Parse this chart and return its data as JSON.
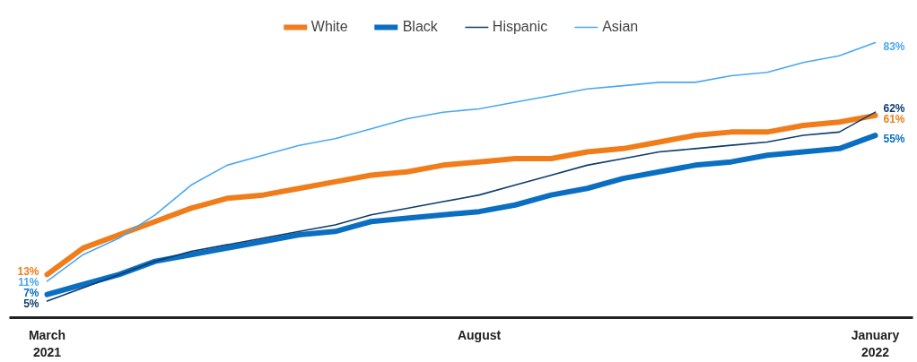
{
  "chart_data": {
    "type": "line",
    "categories": [
      "March\n2021",
      null,
      null,
      null,
      null,
      null,
      null,
      null,
      null,
      null,
      null,
      null,
      "August",
      null,
      null,
      null,
      null,
      null,
      null,
      null,
      null,
      null,
      null,
      "January\n2022"
    ],
    "series": [
      {
        "name": "White",
        "color": "#f07d1a",
        "values": [
          13,
          21,
          25,
          29,
          33,
          36,
          37,
          39,
          41,
          43,
          44,
          46,
          47,
          48,
          48,
          50,
          51,
          53,
          55,
          56,
          56,
          58,
          59,
          61
        ],
        "value_labels": [
          "13%",
          null,
          null,
          null,
          null,
          null,
          null,
          null,
          null,
          null,
          null,
          null,
          null,
          null,
          null,
          null,
          null,
          null,
          null,
          null,
          null,
          null,
          null,
          "61%"
        ]
      },
      {
        "name": "Black",
        "color": "#0a6fc2",
        "values": [
          7,
          10,
          13,
          17,
          19,
          21,
          23,
          25,
          26,
          29,
          30,
          31,
          32,
          34,
          37,
          39,
          42,
          44,
          46,
          47,
          49,
          50,
          51,
          55
        ],
        "value_labels": [
          "7%",
          null,
          null,
          null,
          null,
          null,
          null,
          null,
          null,
          null,
          null,
          null,
          null,
          null,
          null,
          null,
          null,
          null,
          null,
          null,
          null,
          null,
          null,
          "55%"
        ]
      },
      {
        "name": "Hispanic",
        "color": "#0d3c6e",
        "values": [
          5,
          9,
          13,
          17,
          20,
          22,
          24,
          26,
          28,
          31,
          33,
          35,
          37,
          40,
          43,
          46,
          48,
          50,
          51,
          52,
          53,
          55,
          56,
          62
        ],
        "value_labels": [
          "5%",
          null,
          null,
          null,
          null,
          null,
          null,
          null,
          null,
          null,
          null,
          null,
          null,
          null,
          null,
          null,
          null,
          null,
          null,
          null,
          null,
          null,
          null,
          "62%"
        ]
      },
      {
        "name": "Asian",
        "color": "#4aa8f0",
        "values": [
          11,
          19,
          24,
          31,
          40,
          46,
          49,
          52,
          54,
          57,
          60,
          62,
          63,
          65,
          67,
          69,
          70,
          71,
          71,
          73,
          74,
          77,
          79,
          83
        ],
        "value_labels": [
          "11%",
          null,
          null,
          null,
          null,
          null,
          null,
          null,
          null,
          null,
          null,
          null,
          null,
          null,
          null,
          null,
          null,
          null,
          null,
          null,
          null,
          null,
          null,
          "83%"
        ]
      }
    ],
    "legend": "top",
    "grid": false,
    "marker": "none",
    "line_style": "solid",
    "tick_labels": "x"
  }
}
